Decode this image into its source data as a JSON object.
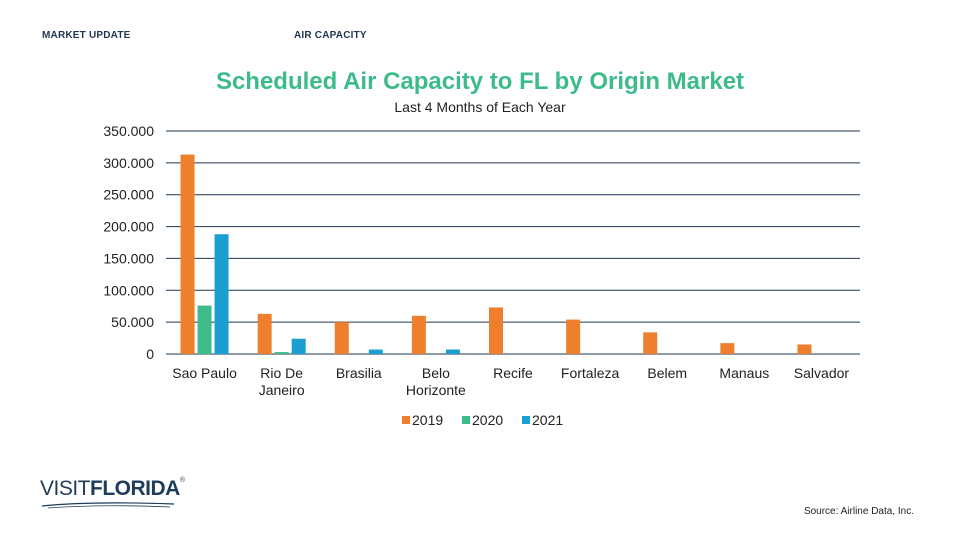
{
  "header": {
    "left_label": "MARKET UPDATE",
    "right_label": "AIR CAPACITY"
  },
  "logo": {
    "visit": "VISIT",
    "florida": "FLORIDA",
    "reg": "®"
  },
  "footer": {
    "source": "Source: Airline Data, Inc."
  },
  "chart_data": {
    "type": "bar",
    "title": "Scheduled Air Capacity to FL by Origin Market",
    "subtitle": "Last 4 Months of Each Year",
    "xlabel": "",
    "ylabel": "",
    "ylim": [
      0,
      350000
    ],
    "yticks": [
      0,
      50000,
      100000,
      150000,
      200000,
      250000,
      300000,
      350000
    ],
    "ytick_labels": [
      "0",
      "50.000",
      "100.000",
      "150.000",
      "200.000",
      "250.000",
      "300.000",
      "350.000"
    ],
    "grid": true,
    "legend_position": "bottom-center",
    "categories": [
      [
        "Sao Paulo"
      ],
      [
        "Rio De",
        "Janeiro"
      ],
      [
        "Brasilia"
      ],
      [
        "Belo",
        "Horizonte"
      ],
      [
        "Recife"
      ],
      [
        "Fortaleza"
      ],
      [
        "Belem"
      ],
      [
        "Manaus"
      ],
      [
        "Salvador"
      ]
    ],
    "series": [
      {
        "name": "2019",
        "color": "#ee7f2d",
        "values": [
          313000,
          63000,
          50000,
          60000,
          73000,
          54000,
          34000,
          17000,
          15000
        ]
      },
      {
        "name": "2020",
        "color": "#3dbb8b",
        "values": [
          76000,
          3000,
          0,
          0,
          0,
          0,
          0,
          0,
          0
        ]
      },
      {
        "name": "2021",
        "color": "#1a9fd0",
        "values": [
          188000,
          24000,
          7000,
          7000,
          0,
          0,
          0,
          0,
          0
        ]
      }
    ]
  }
}
